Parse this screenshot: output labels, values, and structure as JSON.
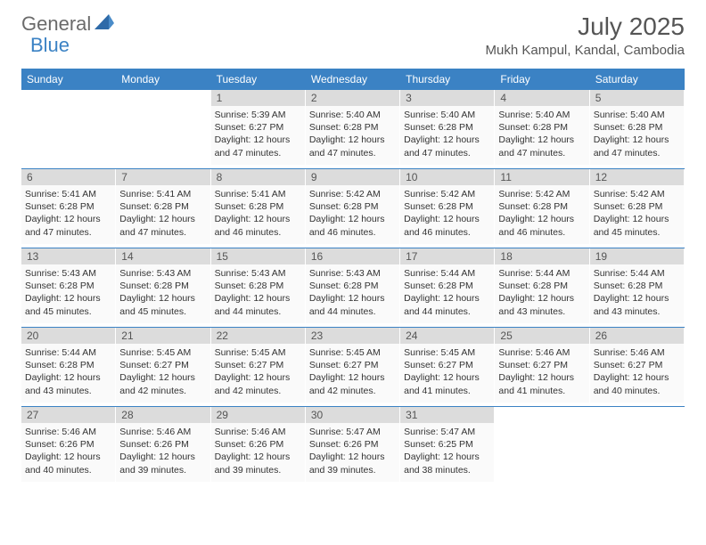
{
  "logo": {
    "general": "General",
    "blue": "Blue"
  },
  "title": "July 2025",
  "location": "Mukh Kampul, Kandal, Cambodia",
  "colors": {
    "header_bg": "#3b82c4",
    "header_text": "#ffffff",
    "daynum_bg": "#dcdcdc",
    "daynum_text": "#555555",
    "body_text": "#333333",
    "sep": "#3b82c4",
    "logo_gray": "#6b6b6b",
    "logo_blue": "#3b82c4"
  },
  "day_names": [
    "Sunday",
    "Monday",
    "Tuesday",
    "Wednesday",
    "Thursday",
    "Friday",
    "Saturday"
  ],
  "weeks": [
    [
      {
        "n": "",
        "l": []
      },
      {
        "n": "",
        "l": []
      },
      {
        "n": "1",
        "l": [
          "Sunrise: 5:39 AM",
          "Sunset: 6:27 PM",
          "Daylight: 12 hours",
          "and 47 minutes."
        ]
      },
      {
        "n": "2",
        "l": [
          "Sunrise: 5:40 AM",
          "Sunset: 6:28 PM",
          "Daylight: 12 hours",
          "and 47 minutes."
        ]
      },
      {
        "n": "3",
        "l": [
          "Sunrise: 5:40 AM",
          "Sunset: 6:28 PM",
          "Daylight: 12 hours",
          "and 47 minutes."
        ]
      },
      {
        "n": "4",
        "l": [
          "Sunrise: 5:40 AM",
          "Sunset: 6:28 PM",
          "Daylight: 12 hours",
          "and 47 minutes."
        ]
      },
      {
        "n": "5",
        "l": [
          "Sunrise: 5:40 AM",
          "Sunset: 6:28 PM",
          "Daylight: 12 hours",
          "and 47 minutes."
        ]
      }
    ],
    [
      {
        "n": "6",
        "l": [
          "Sunrise: 5:41 AM",
          "Sunset: 6:28 PM",
          "Daylight: 12 hours",
          "and 47 minutes."
        ]
      },
      {
        "n": "7",
        "l": [
          "Sunrise: 5:41 AM",
          "Sunset: 6:28 PM",
          "Daylight: 12 hours",
          "and 47 minutes."
        ]
      },
      {
        "n": "8",
        "l": [
          "Sunrise: 5:41 AM",
          "Sunset: 6:28 PM",
          "Daylight: 12 hours",
          "and 46 minutes."
        ]
      },
      {
        "n": "9",
        "l": [
          "Sunrise: 5:42 AM",
          "Sunset: 6:28 PM",
          "Daylight: 12 hours",
          "and 46 minutes."
        ]
      },
      {
        "n": "10",
        "l": [
          "Sunrise: 5:42 AM",
          "Sunset: 6:28 PM",
          "Daylight: 12 hours",
          "and 46 minutes."
        ]
      },
      {
        "n": "11",
        "l": [
          "Sunrise: 5:42 AM",
          "Sunset: 6:28 PM",
          "Daylight: 12 hours",
          "and 46 minutes."
        ]
      },
      {
        "n": "12",
        "l": [
          "Sunrise: 5:42 AM",
          "Sunset: 6:28 PM",
          "Daylight: 12 hours",
          "and 45 minutes."
        ]
      }
    ],
    [
      {
        "n": "13",
        "l": [
          "Sunrise: 5:43 AM",
          "Sunset: 6:28 PM",
          "Daylight: 12 hours",
          "and 45 minutes."
        ]
      },
      {
        "n": "14",
        "l": [
          "Sunrise: 5:43 AM",
          "Sunset: 6:28 PM",
          "Daylight: 12 hours",
          "and 45 minutes."
        ]
      },
      {
        "n": "15",
        "l": [
          "Sunrise: 5:43 AM",
          "Sunset: 6:28 PM",
          "Daylight: 12 hours",
          "and 44 minutes."
        ]
      },
      {
        "n": "16",
        "l": [
          "Sunrise: 5:43 AM",
          "Sunset: 6:28 PM",
          "Daylight: 12 hours",
          "and 44 minutes."
        ]
      },
      {
        "n": "17",
        "l": [
          "Sunrise: 5:44 AM",
          "Sunset: 6:28 PM",
          "Daylight: 12 hours",
          "and 44 minutes."
        ]
      },
      {
        "n": "18",
        "l": [
          "Sunrise: 5:44 AM",
          "Sunset: 6:28 PM",
          "Daylight: 12 hours",
          "and 43 minutes."
        ]
      },
      {
        "n": "19",
        "l": [
          "Sunrise: 5:44 AM",
          "Sunset: 6:28 PM",
          "Daylight: 12 hours",
          "and 43 minutes."
        ]
      }
    ],
    [
      {
        "n": "20",
        "l": [
          "Sunrise: 5:44 AM",
          "Sunset: 6:28 PM",
          "Daylight: 12 hours",
          "and 43 minutes."
        ]
      },
      {
        "n": "21",
        "l": [
          "Sunrise: 5:45 AM",
          "Sunset: 6:27 PM",
          "Daylight: 12 hours",
          "and 42 minutes."
        ]
      },
      {
        "n": "22",
        "l": [
          "Sunrise: 5:45 AM",
          "Sunset: 6:27 PM",
          "Daylight: 12 hours",
          "and 42 minutes."
        ]
      },
      {
        "n": "23",
        "l": [
          "Sunrise: 5:45 AM",
          "Sunset: 6:27 PM",
          "Daylight: 12 hours",
          "and 42 minutes."
        ]
      },
      {
        "n": "24",
        "l": [
          "Sunrise: 5:45 AM",
          "Sunset: 6:27 PM",
          "Daylight: 12 hours",
          "and 41 minutes."
        ]
      },
      {
        "n": "25",
        "l": [
          "Sunrise: 5:46 AM",
          "Sunset: 6:27 PM",
          "Daylight: 12 hours",
          "and 41 minutes."
        ]
      },
      {
        "n": "26",
        "l": [
          "Sunrise: 5:46 AM",
          "Sunset: 6:27 PM",
          "Daylight: 12 hours",
          "and 40 minutes."
        ]
      }
    ],
    [
      {
        "n": "27",
        "l": [
          "Sunrise: 5:46 AM",
          "Sunset: 6:26 PM",
          "Daylight: 12 hours",
          "and 40 minutes."
        ]
      },
      {
        "n": "28",
        "l": [
          "Sunrise: 5:46 AM",
          "Sunset: 6:26 PM",
          "Daylight: 12 hours",
          "and 39 minutes."
        ]
      },
      {
        "n": "29",
        "l": [
          "Sunrise: 5:46 AM",
          "Sunset: 6:26 PM",
          "Daylight: 12 hours",
          "and 39 minutes."
        ]
      },
      {
        "n": "30",
        "l": [
          "Sunrise: 5:47 AM",
          "Sunset: 6:26 PM",
          "Daylight: 12 hours",
          "and 39 minutes."
        ]
      },
      {
        "n": "31",
        "l": [
          "Sunrise: 5:47 AM",
          "Sunset: 6:25 PM",
          "Daylight: 12 hours",
          "and 38 minutes."
        ]
      },
      {
        "n": "",
        "l": []
      },
      {
        "n": "",
        "l": []
      }
    ]
  ]
}
